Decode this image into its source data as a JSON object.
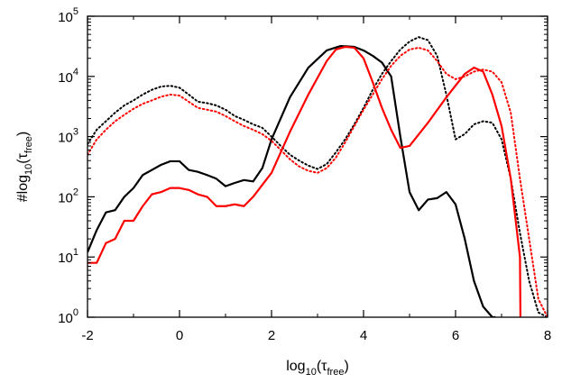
{
  "chart_data": {
    "type": "line",
    "title": "",
    "xlabel": {
      "base": "log",
      "sub1": "10",
      "mid": "(τ",
      "sub2": "free",
      "end": ")"
    },
    "ylabel": {
      "base": "#log",
      "sub1": "10",
      "mid": "(τ",
      "sub2": "free",
      "end": ")"
    },
    "x_scale": "linear",
    "y_scale": "log",
    "xlim": [
      -2,
      8
    ],
    "ylim": [
      1,
      100000
    ],
    "x_ticks": [
      -2,
      0,
      2,
      4,
      6,
      8
    ],
    "y_ticks": [
      {
        "value": 1,
        "mant": "10",
        "exp": "0"
      },
      {
        "value": 10,
        "mant": "10",
        "exp": "1"
      },
      {
        "value": 100,
        "mant": "10",
        "exp": "2"
      },
      {
        "value": 1000,
        "mant": "10",
        "exp": "3"
      },
      {
        "value": 10000,
        "mant": "10",
        "exp": "4"
      },
      {
        "value": 100000,
        "mant": "10",
        "exp": "5"
      }
    ],
    "grid": false,
    "legend": "none",
    "series": [
      {
        "color": "#000000",
        "style": "solid",
        "x": [
          -2.0,
          -1.8,
          -1.6,
          -1.4,
          -1.2,
          -1.0,
          -0.8,
          -0.6,
          -0.4,
          -0.2,
          0.0,
          0.2,
          0.4,
          0.6,
          0.8,
          1.0,
          1.2,
          1.4,
          1.6,
          1.8,
          2.0,
          2.4,
          2.8,
          3.2,
          3.5,
          3.8,
          4.0,
          4.2,
          4.4,
          4.6,
          4.8,
          5.0,
          5.2,
          5.4,
          5.6,
          5.8,
          6.0,
          6.2,
          6.4,
          6.6,
          6.8,
          6.87
        ],
        "y": [
          12,
          28,
          55,
          60,
          100,
          140,
          230,
          280,
          340,
          390,
          390,
          280,
          260,
          230,
          200,
          150,
          170,
          190,
          180,
          300,
          900,
          4500,
          14000,
          27000,
          32000,
          31000,
          27000,
          22000,
          17000,
          10000,
          1000,
          120,
          60,
          90,
          95,
          120,
          75,
          20,
          4,
          1.5,
          1.0,
          1.0
        ]
      },
      {
        "color": "#000000",
        "style": "dotted",
        "x": [
          -2.0,
          -1.8,
          -1.6,
          -1.4,
          -1.2,
          -1.0,
          -0.8,
          -0.6,
          -0.4,
          -0.2,
          0.0,
          0.2,
          0.4,
          0.6,
          0.8,
          1.0,
          1.2,
          1.4,
          1.6,
          1.8,
          2.0,
          2.2,
          2.4,
          2.6,
          2.8,
          3.0,
          3.2,
          3.4,
          3.6,
          3.8,
          4.0,
          4.2,
          4.4,
          4.6,
          4.8,
          5.0,
          5.2,
          5.4,
          5.6,
          5.8,
          6.0,
          6.2,
          6.4,
          6.6,
          6.8,
          7.0,
          7.2,
          7.4,
          7.6,
          7.8,
          8.0
        ],
        "y": [
          750,
          1300,
          1800,
          2500,
          3300,
          4000,
          5000,
          6000,
          6800,
          7000,
          6500,
          5000,
          3800,
          3600,
          3300,
          2800,
          2200,
          1900,
          1600,
          1400,
          1000,
          700,
          500,
          400,
          330,
          290,
          350,
          550,
          900,
          1600,
          3000,
          6000,
          11000,
          18000,
          28000,
          38000,
          45000,
          40000,
          22000,
          5000,
          900,
          1100,
          1600,
          1800,
          1700,
          900,
          200,
          25,
          4,
          1.2,
          1.0
        ]
      },
      {
        "color": "#ff0000",
        "style": "solid",
        "x": [
          -2.0,
          -1.8,
          -1.6,
          -1.4,
          -1.2,
          -1.0,
          -0.8,
          -0.6,
          -0.4,
          -0.2,
          0.0,
          0.2,
          0.4,
          0.6,
          0.8,
          1.0,
          1.2,
          1.4,
          1.6,
          2.0,
          2.4,
          2.8,
          3.2,
          3.4,
          3.6,
          3.8,
          4.0,
          4.2,
          4.4,
          4.6,
          4.8,
          5.0,
          5.4,
          5.8,
          6.2,
          6.4,
          6.6,
          6.8,
          7.0,
          7.2,
          7.4,
          7.41
        ],
        "y": [
          8,
          8,
          17,
          20,
          40,
          40,
          70,
          110,
          120,
          140,
          140,
          130,
          110,
          100,
          70,
          70,
          75,
          70,
          100,
          250,
          1200,
          5000,
          18000,
          28000,
          31000,
          30000,
          20000,
          8000,
          3000,
          1300,
          650,
          700,
          1700,
          4500,
          11000,
          14000,
          12000,
          5000,
          1500,
          200,
          10,
          1.0
        ]
      },
      {
        "color": "#ff0000",
        "style": "dotted",
        "x": [
          -2.0,
          -1.8,
          -1.6,
          -1.4,
          -1.2,
          -1.0,
          -0.8,
          -0.6,
          -0.4,
          -0.2,
          0.0,
          0.2,
          0.4,
          0.6,
          0.8,
          1.0,
          1.2,
          1.4,
          1.6,
          1.8,
          2.0,
          2.2,
          2.4,
          2.6,
          2.8,
          3.0,
          3.2,
          3.4,
          3.6,
          3.8,
          4.0,
          4.2,
          4.4,
          4.6,
          4.8,
          5.0,
          5.2,
          5.4,
          5.6,
          5.8,
          6.0,
          6.2,
          6.4,
          6.6,
          6.8,
          7.0,
          7.2,
          7.4,
          7.6,
          7.8,
          8.0
        ],
        "y": [
          500,
          900,
          1300,
          1800,
          2300,
          2900,
          3500,
          4000,
          4600,
          5000,
          4800,
          3800,
          3000,
          2800,
          2600,
          2200,
          1800,
          1500,
          1300,
          1100,
          850,
          600,
          420,
          320,
          270,
          250,
          300,
          450,
          800,
          1500,
          2800,
          5000,
          9000,
          15000,
          22000,
          28000,
          30000,
          27000,
          18000,
          11000,
          9000,
          10000,
          12000,
          13000,
          12000,
          8000,
          2500,
          200,
          20,
          2,
          1.0
        ]
      }
    ]
  }
}
